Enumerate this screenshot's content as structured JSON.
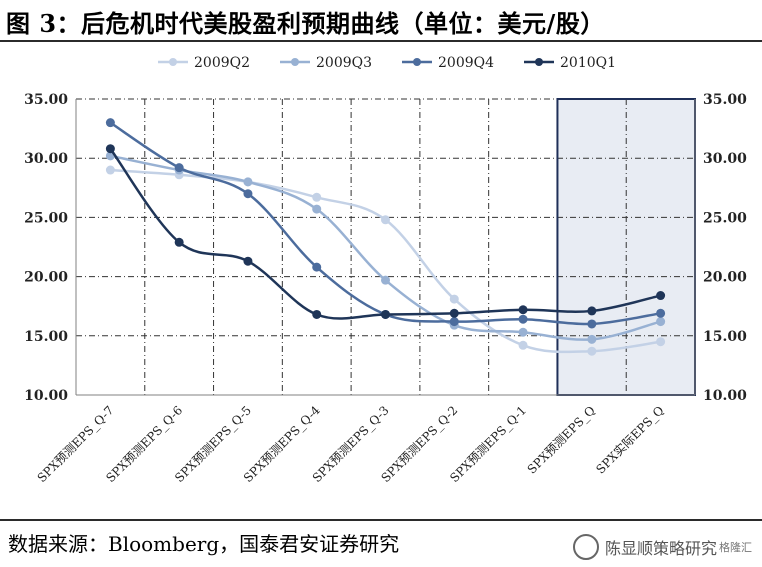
{
  "header": {
    "title": "图 3：后危机时代美股盈利预期曲线（单位：美元/股）"
  },
  "footer": {
    "source": "数据来源：Bloomberg，国泰君安证券研究"
  },
  "watermark": {
    "name": "陈显顺策略研究",
    "sub": "格隆汇"
  },
  "colors": {
    "axis": "#808080",
    "grid": "#333333",
    "shade": "#e8ecf3",
    "shade_border": "#1f2f58"
  },
  "chart_data": {
    "type": "line",
    "categories": [
      "SPX预测EPS_Q-7",
      "SPX预测EPS_Q-6",
      "SPX预测EPS_Q-5",
      "SPX预测EPS_Q-4",
      "SPX预测EPS_Q-3",
      "SPX预测EPS_Q-2",
      "SPX预测EPS_Q-1",
      "SPX预测EPS_Q",
      "SPX实际EPS_Q"
    ],
    "ylim": [
      10,
      35
    ],
    "yticks": [
      "10.00",
      "15.00",
      "20.00",
      "25.00",
      "30.00",
      "35.00"
    ],
    "grid": true,
    "legend_position": "top",
    "highlight_categories": [
      7,
      8
    ],
    "series": [
      {
        "name": "2009Q2",
        "color": "#c3d1e6",
        "values": [
          29.0,
          28.6,
          28.0,
          26.7,
          24.8,
          18.1,
          14.2,
          13.7,
          14.5
        ]
      },
      {
        "name": "2009Q3",
        "color": "#98b1d3",
        "values": [
          30.2,
          29.0,
          28.0,
          25.7,
          19.7,
          15.9,
          15.3,
          14.7,
          16.2
        ]
      },
      {
        "name": "2009Q4",
        "color": "#4c6c9d",
        "values": [
          33.0,
          29.2,
          27.0,
          20.8,
          16.8,
          16.2,
          16.4,
          16.0,
          16.9
        ]
      },
      {
        "name": "2010Q1",
        "color": "#1f3558",
        "values": [
          30.8,
          22.9,
          21.3,
          16.8,
          16.8,
          16.9,
          17.2,
          17.1,
          18.4
        ]
      }
    ]
  }
}
